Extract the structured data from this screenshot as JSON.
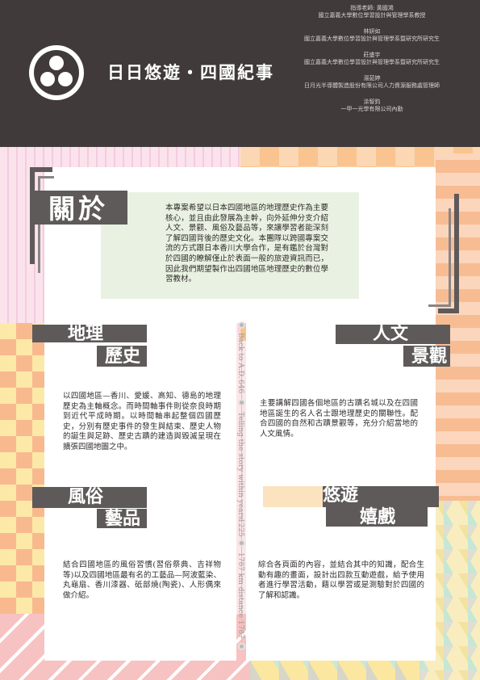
{
  "header": {
    "title": "日日悠遊・四國紀事",
    "credits": [
      {
        "name": "指導老師: 黃國鴻",
        "role": "國立嘉義大學數位學習設計與管理學系教授"
      },
      {
        "name": "林妍如",
        "role": "國立嘉義大學數位學習設計與管理學系暨研究所研究生"
      },
      {
        "name": "莊盛宇",
        "role": "國立嘉義大學數位學習設計與管理學系暨研究所研究生"
      },
      {
        "name": "湯茹婷",
        "role": "日月光半導體製造股份有限公司人力資源服務處管理師"
      },
      {
        "name": "涂智鈞",
        "role": "一甲一光學有限公司內勤"
      }
    ]
  },
  "about": {
    "title": "關於",
    "text": "本專案希望以日本四國地區的地理歷史作為主要核心，並且由此發展為主幹，向外延伸分支介紹人文、景觀、風俗及藝品等，來讓學習者能深刻了解四國背後的歷史文化。本團隊以跨國專案交流的方式跟日本香川大學合作，是有鑑於台灣對於四國的瞭解僅止於表面一般的旅遊資訊而已，因此我們期望製作出四國地區地理歷史的數位學習教材。"
  },
  "sections": {
    "geo": {
      "title_line1": "地理",
      "title_line2": "歷史",
      "text": "以四國地區—香川、愛媛、高知、德島的地理歷史為主軸概念。而時間軸事件則從奈良時期到近代平成時期。以時間軸串起整個四國歷史，分別有歷史事件的發生與結束、歷史人物的誕生與足跡、歷史古蹟的建造與毀滅呈現在擴張四國地圖之中。"
    },
    "culture": {
      "title_line1": "人文",
      "title_line2": "景觀",
      "text": "主要講解四國各個地區的古蹟名城以及在四國地區誕生的名人名士跟地理歷史的關聯性。配合四國的自然和古蹟景觀等，充分介紹當地的人文風情。"
    },
    "folk": {
      "title_line1": "風俗",
      "title_line2": "藝品",
      "text": "結合四國地區的風俗習慣(習俗祭典、吉祥物等)以及四國地區最有名的工藝品—阿波藍染、丸龜扇、香川漆器、砥部燒(陶瓷)、人形偶來做介紹。"
    },
    "game": {
      "title_line1": "悠遊",
      "title_line2": "嬉戲",
      "text": "綜合各頁面的內容，並結合其中的知識，配合生動有趣的畫面，設計出四款互動遊戲，給予使用者進行學習活動，藉以學習或是測驗對於四國的了解和認識。"
    }
  },
  "timeline": {
    "labels": [
      "Back to A.D.",
      "646",
      "Telling the story within years",
      "1225",
      "1787 km distance",
      "1787"
    ]
  }
}
